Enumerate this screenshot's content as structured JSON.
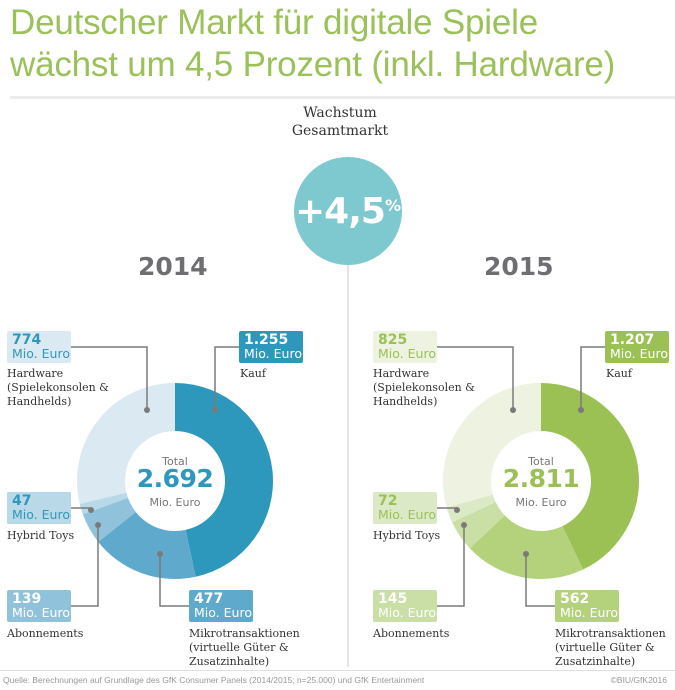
{
  "title_line1": "Deutscher Markt für digitale Spiele",
  "title_line2": "wächst um 4,5 Prozent (inkl. Hardware)",
  "growth": {
    "label_line1": "Wachstum",
    "label_line2": "Gesamtmarkt",
    "value": "+4,5",
    "unit": "%"
  },
  "footer": {
    "source": "Quelle: Berechnungen auf Grundlage des GfK Consumer Panels (2014/2015; n=25.000) und GfK Entertainment",
    "copyright": "©BIU/GfK2016"
  },
  "unit_label": "Mio. Euro",
  "total_label": "Total",
  "chart_data": [
    {
      "type": "pie",
      "title": "2014",
      "total": "2.692",
      "total_value": 2692,
      "unit": "Mio. Euro",
      "slices": [
        {
          "name": "Kauf",
          "label": "Kauf",
          "value": 1255,
          "display": "1.255",
          "color": "#2e98bc"
        },
        {
          "name": "Mikrotransaktionen",
          "label": "Mikrotransaktionen\n(virtuelle Güter &\nZusatzinhalte)",
          "value": 477,
          "display": "477",
          "color": "#5fa9cc"
        },
        {
          "name": "Abonnements",
          "label": "Abonnements",
          "value": 139,
          "display": "139",
          "color": "#90c2dc"
        },
        {
          "name": "Hybrid Toys",
          "label": "Hybrid Toys",
          "value": 47,
          "display": "47",
          "color": "#b9d8e8"
        },
        {
          "name": "Hardware",
          "label": "Hardware\n(Spielekonsolen &\nHandhelds)",
          "value": 774,
          "display": "774",
          "color": "#dbe9f2"
        }
      ],
      "accent": "#2e98bc"
    },
    {
      "type": "pie",
      "title": "2015",
      "total": "2.811",
      "total_value": 2811,
      "unit": "Mio. Euro",
      "slices": [
        {
          "name": "Kauf",
          "label": "Kauf",
          "value": 1207,
          "display": "1.207",
          "color": "#9bc155"
        },
        {
          "name": "Mikrotransaktionen",
          "label": "Mikrotransaktionen\n(virtuelle Güter &\nZusatzinhalte)",
          "value": 562,
          "display": "562",
          "color": "#b4d27c"
        },
        {
          "name": "Abonnements",
          "label": "Abonnements",
          "value": 145,
          "display": "145",
          "color": "#c9dfa5"
        },
        {
          "name": "Hybrid Toys",
          "label": "Hybrid Toys",
          "value": 72,
          "display": "72",
          "color": "#dce9c6"
        },
        {
          "name": "Hardware",
          "label": "Hardware\n(Spielekonsolen &\nHandhelds)",
          "value": 825,
          "display": "825",
          "color": "#edf3e0"
        }
      ],
      "accent": "#9bc155"
    }
  ]
}
